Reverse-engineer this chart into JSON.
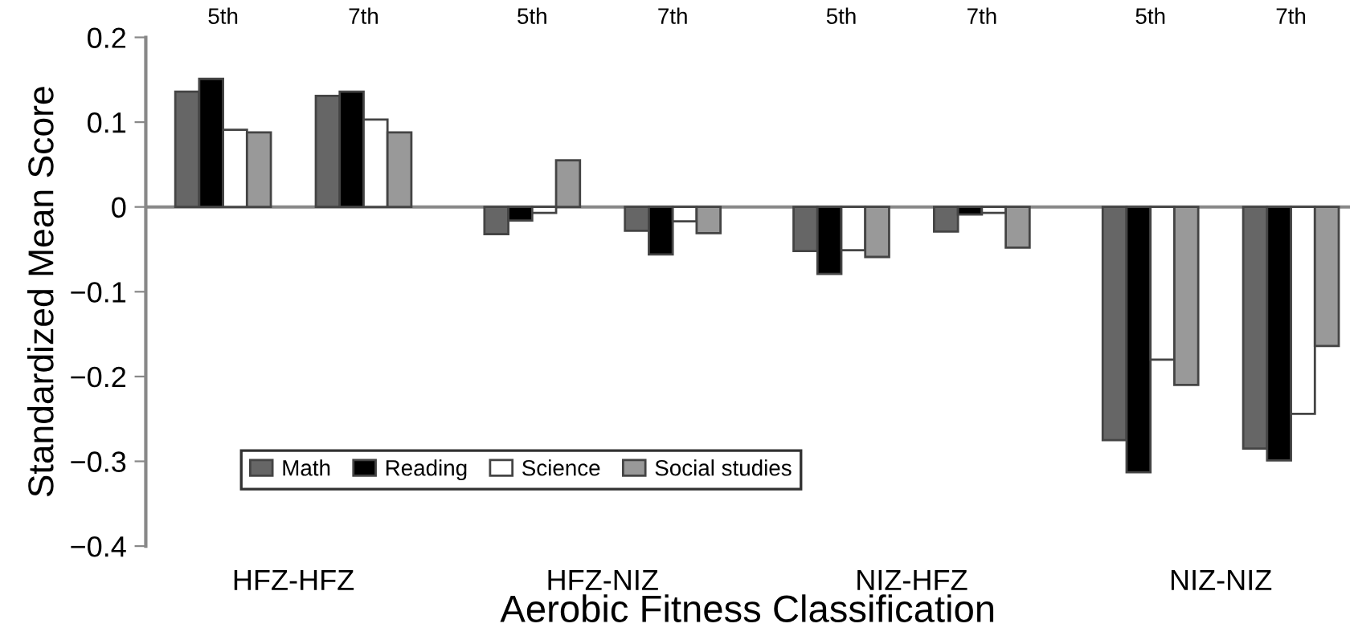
{
  "chart_data": {
    "type": "bar",
    "xlabel": "Aerobic Fitness Classification",
    "ylabel": "Standardized Mean Score",
    "categories": [
      "5th",
      "7th",
      "5th",
      "7th",
      "5th",
      "7th",
      "5th",
      "7th"
    ],
    "annotations": [
      "HFZ-HFZ",
      "HFZ-NIZ",
      "NIZ-HFZ",
      "NIZ-NIZ"
    ],
    "series": [
      {
        "name": "Math",
        "color": "#666666",
        "values": [
          0.136,
          0.131,
          -0.032,
          -0.028,
          -0.052,
          -0.029,
          -0.275,
          -0.285
        ]
      },
      {
        "name": "Reading",
        "color": "#000000",
        "values": [
          0.151,
          0.136,
          -0.016,
          -0.056,
          -0.079,
          -0.009,
          -0.313,
          -0.299
        ]
      },
      {
        "name": "Science",
        "color": "#ffffff",
        "values": [
          0.091,
          0.103,
          -0.007,
          -0.017,
          -0.051,
          -0.007,
          -0.18,
          -0.244
        ]
      },
      {
        "name": "Social studies",
        "color": "#999999",
        "values": [
          0.088,
          0.088,
          0.055,
          -0.031,
          -0.059,
          -0.048,
          -0.21,
          -0.164
        ]
      }
    ],
    "ylim": [
      -0.4,
      0.2
    ],
    "yticks": [
      {
        "value": -0.4,
        "label": "−0.4"
      },
      {
        "value": -0.3,
        "label": "−0.3"
      },
      {
        "value": -0.2,
        "label": "−0.2"
      },
      {
        "value": -0.1,
        "label": "−0.1"
      },
      0,
      0.1,
      0.2
    ],
    "ref_lines": [
      {
        "axis": "y",
        "value": 0,
        "color": "#888888"
      }
    ],
    "legend": "bottom left"
  }
}
